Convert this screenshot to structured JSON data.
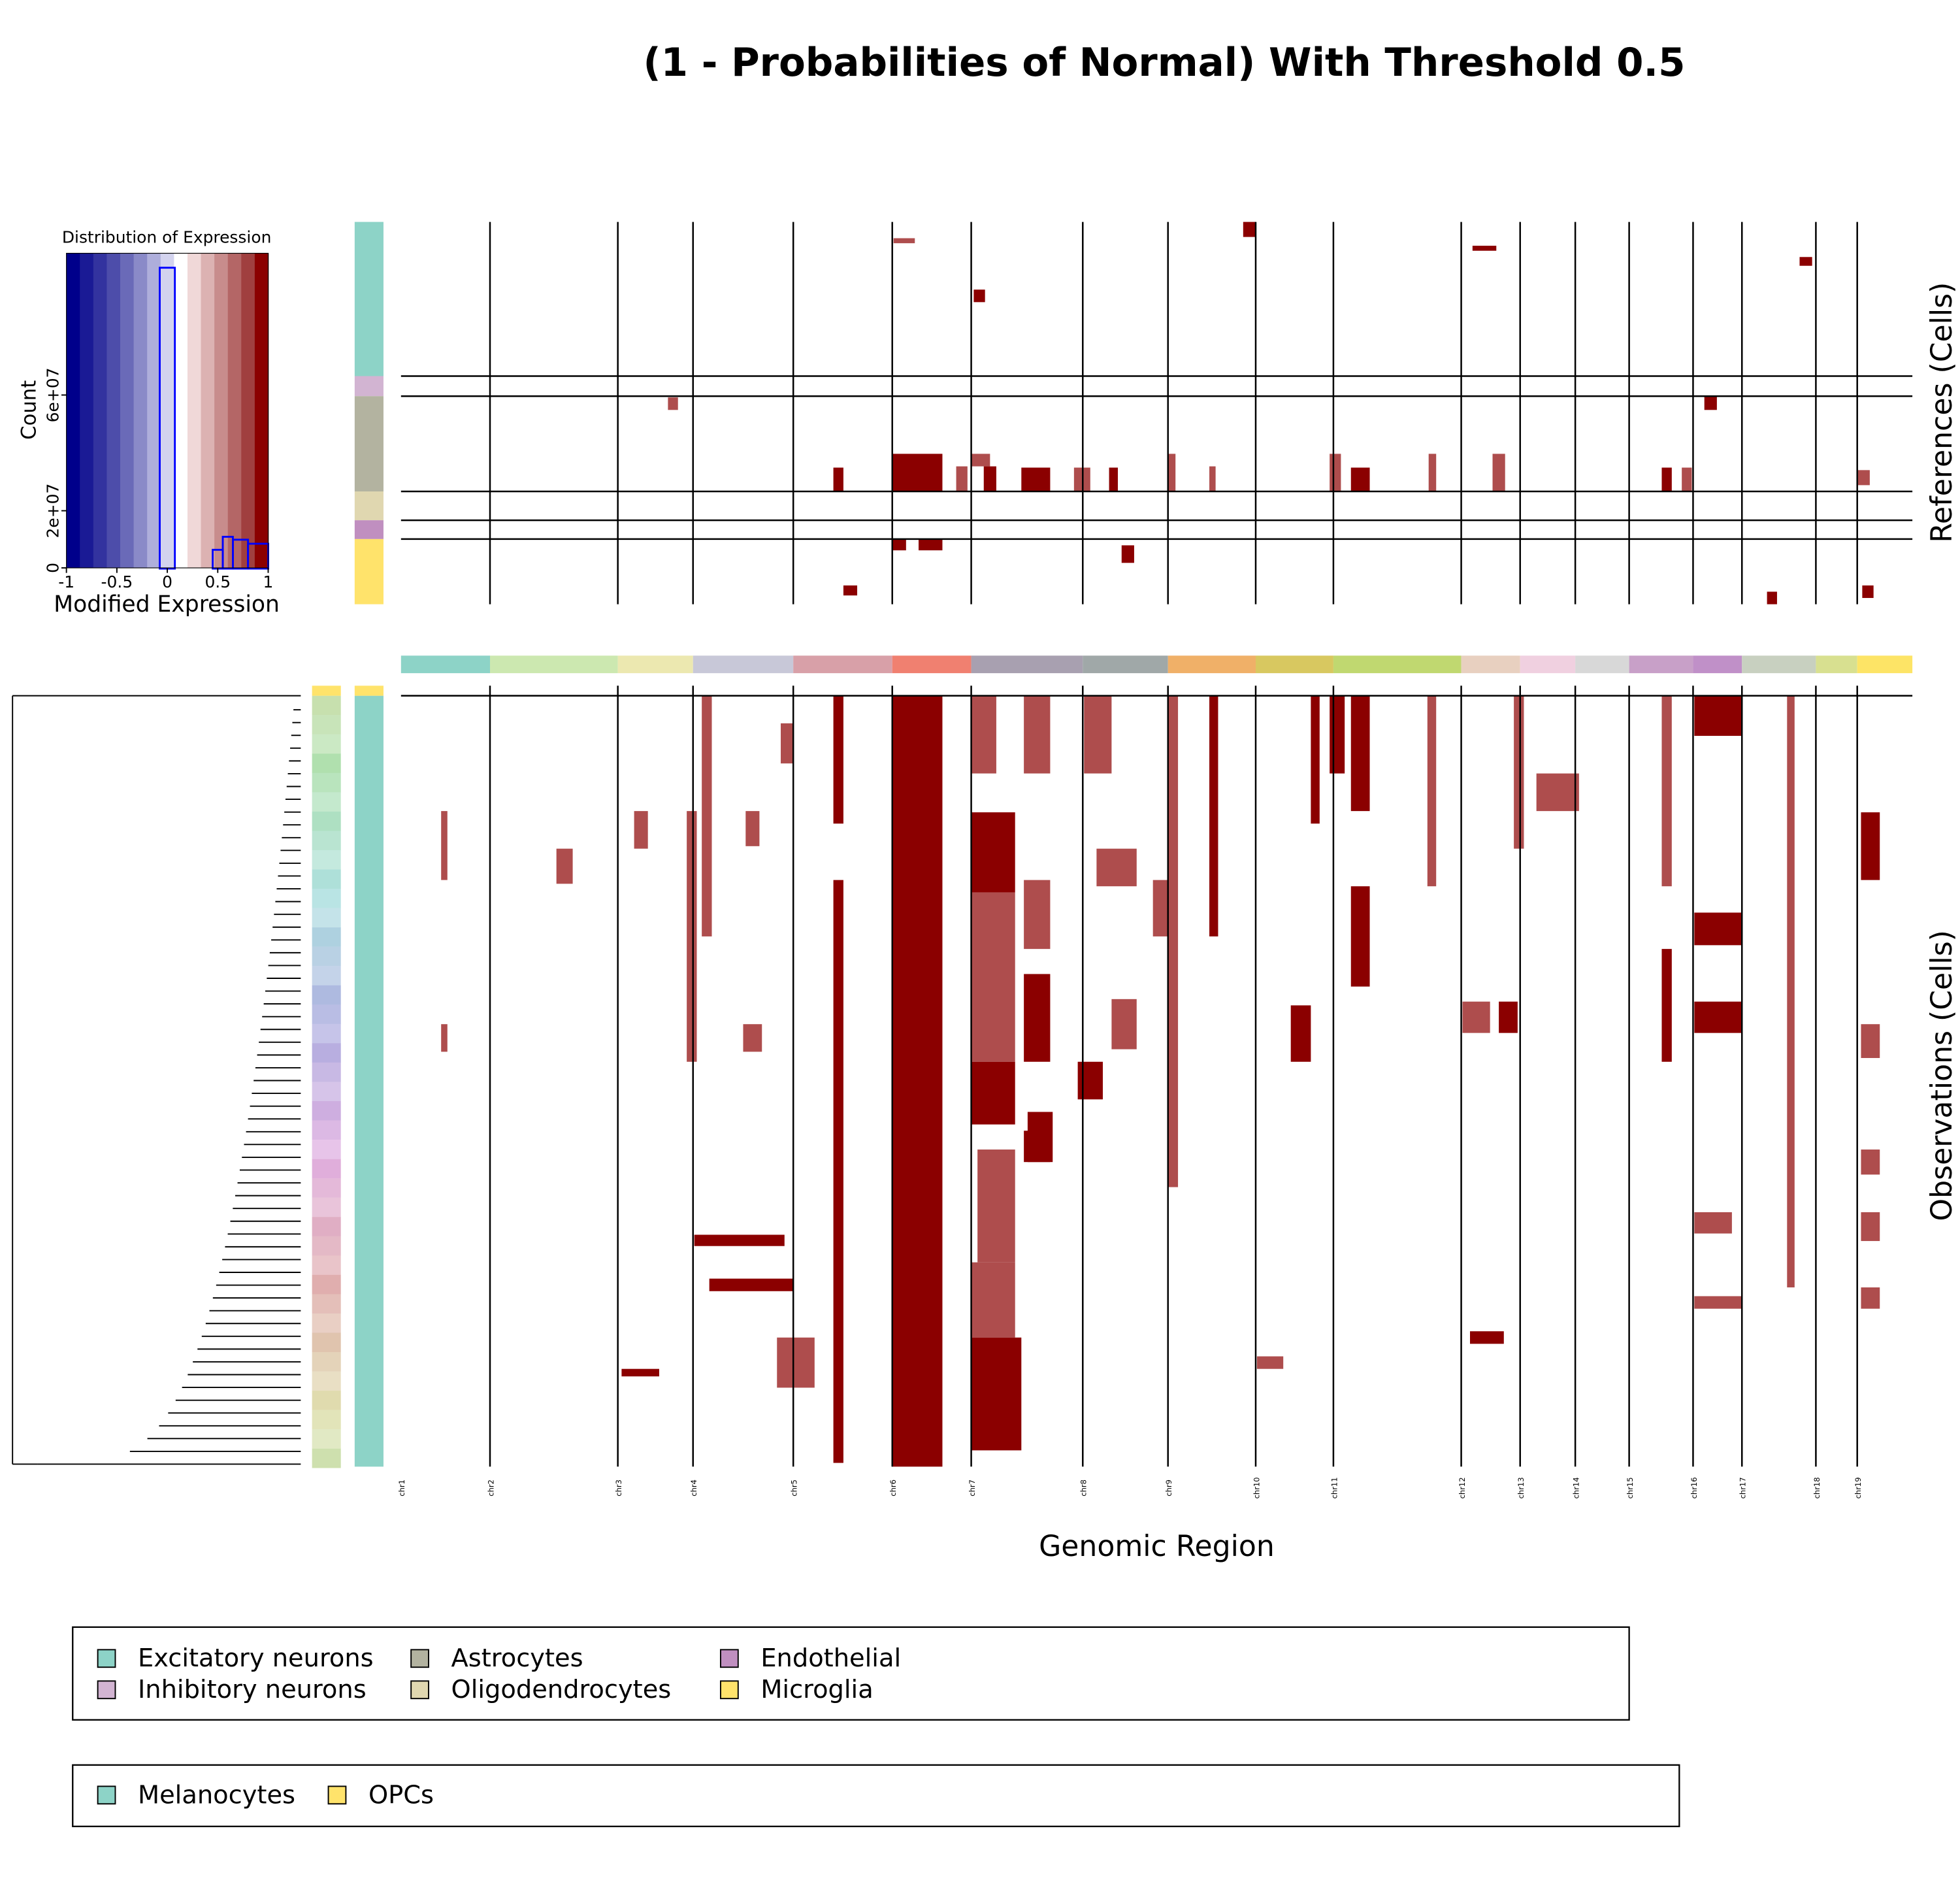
{
  "chart_data": {
    "type": "heatmap",
    "title": "(1 - Probabilities of Normal) With Threshold 0.5",
    "xlabel": "Genomic Region",
    "xlim": [
      0,
      1206
    ],
    "color": "#8b0000",
    "chromosomes": [
      {
        "name": "chr1",
        "start": 0,
        "color": "#8dd3c7"
      },
      {
        "name": "chr2",
        "start": 71,
        "color": "#cce8b0"
      },
      {
        "name": "chr3",
        "start": 173,
        "color": "#ece8b0"
      },
      {
        "name": "chr4",
        "start": 233,
        "color": "#c8c8d8"
      },
      {
        "name": "chr5",
        "start": 313,
        "color": "#d8a0a8"
      },
      {
        "name": "chr6",
        "start": 392,
        "color": "#f08070"
      },
      {
        "name": "chr7",
        "start": 455,
        "color": "#a8a0b0"
      },
      {
        "name": "chr8",
        "start": 544,
        "color": "#a0a8a8"
      },
      {
        "name": "chr9",
        "start": 612,
        "color": "#f0b068"
      },
      {
        "name": "chr10",
        "start": 682,
        "color": "#d8c860"
      },
      {
        "name": "chr11",
        "start": 744,
        "color": "#c0d870"
      },
      {
        "name": "chr12",
        "start": 846,
        "color": "#e8d0c0"
      },
      {
        "name": "chr13",
        "start": 893,
        "color": "#f0d0e0"
      },
      {
        "name": "chr14",
        "start": 937,
        "color": "#d8d8d8"
      },
      {
        "name": "chr15",
        "start": 980,
        "color": "#c8a0c8"
      },
      {
        "name": "chr16",
        "start": 1031,
        "color": "#c090c8"
      },
      {
        "name": "chr17",
        "start": 1070,
        "color": "#c8d0c0"
      },
      {
        "name": "chr18",
        "start": 1129,
        "color": "#d8e090"
      },
      {
        "name": "chr19",
        "start": 1162,
        "color": "#fde466"
      }
    ],
    "references": {
      "label": "References (Cells)",
      "ylim": [
        0,
        305
      ],
      "groups": [
        {
          "name": "Excitatory neurons",
          "color": "#8dd3c7",
          "rows": [
            0,
            123
          ]
        },
        {
          "name": "Inhibitory neurons",
          "color": "#d2b4d2",
          "rows": [
            123,
            139
          ]
        },
        {
          "name": "Astrocytes",
          "color": "#b3b3a0",
          "rows": [
            139,
            215
          ]
        },
        {
          "name": "Oligodendrocytes",
          "color": "#e0d7b0",
          "rows": [
            215,
            238
          ]
        },
        {
          "name": "Endothelial",
          "color": "#c08fc0",
          "rows": [
            238,
            253
          ]
        },
        {
          "name": "Microglia",
          "color": "#ffe36b",
          "rows": [
            253,
            305
          ]
        }
      ],
      "blocks": [
        [
          392,
          432,
          185,
          215,
          1
        ],
        [
          392,
          403,
          253,
          262,
          1
        ],
        [
          413,
          432,
          253,
          262,
          1
        ],
        [
          345,
          353,
          196,
          215,
          1
        ],
        [
          443,
          452,
          195,
          215,
          0.7
        ],
        [
          455,
          470,
          185,
          195,
          0.7
        ],
        [
          465,
          475,
          195,
          215,
          1
        ],
        [
          495,
          518,
          196,
          215,
          1
        ],
        [
          537,
          550,
          196,
          215,
          0.7
        ],
        [
          565,
          572,
          196,
          215,
          1
        ],
        [
          741,
          750,
          185,
          215,
          0.7
        ],
        [
          758,
          773,
          196,
          215,
          1
        ],
        [
          1006,
          1014,
          196,
          215,
          1
        ],
        [
          1022,
          1030,
          196,
          215,
          0.7
        ],
        [
          871,
          881,
          185,
          215,
          0.7
        ],
        [
          672,
          682,
          0,
          12,
          1
        ],
        [
          855,
          874,
          19,
          23,
          1
        ],
        [
          1116,
          1126,
          28,
          35,
          1
        ],
        [
          575,
          585,
          258,
          272,
          1
        ],
        [
          457,
          466,
          54,
          64,
          1
        ],
        [
          393,
          410,
          13,
          17,
          0.7
        ],
        [
          213,
          221,
          140,
          150,
          0.7
        ],
        [
          1040,
          1050,
          139,
          150,
          1
        ],
        [
          612,
          618,
          185,
          215,
          0.7
        ],
        [
          645,
          650,
          195,
          215,
          0.7
        ],
        [
          820,
          826,
          185,
          215,
          0.7
        ],
        [
          1162,
          1172,
          198,
          210,
          0.7
        ],
        [
          1166,
          1175,
          290,
          300,
          1
        ],
        [
          353,
          364,
          290,
          298,
          1
        ],
        [
          1090,
          1098,
          295,
          305,
          1
        ]
      ]
    },
    "observations": {
      "label": "Observations (Cells)",
      "ylim": [
        0,
        623
      ],
      "groups": [
        {
          "name": "Melanocytes",
          "color": "#8dd3c7",
          "rows": [
            8,
            623
          ]
        },
        {
          "name": "OPCs",
          "color": "#ffe36b",
          "rows": [
            0,
            8
          ]
        }
      ],
      "blocks": [
        [
          392,
          432,
          8,
          623,
          1
        ],
        [
          455,
          475,
          8,
          70,
          0.7
        ],
        [
          455,
          490,
          101,
          165,
          1
        ],
        [
          455,
          490,
          165,
          300,
          0.7
        ],
        [
          455,
          490,
          300,
          350,
          1
        ],
        [
          460,
          490,
          370,
          460,
          0.7
        ],
        [
          455,
          490,
          460,
          520,
          0.7
        ],
        [
          455,
          495,
          520,
          610,
          1
        ],
        [
          497,
          518,
          8,
          70,
          0.7
        ],
        [
          497,
          518,
          155,
          210,
          0.7
        ],
        [
          497,
          518,
          230,
          300,
          1
        ],
        [
          497,
          518,
          355,
          380,
          1
        ],
        [
          345,
          353,
          8,
          110,
          1
        ],
        [
          345,
          353,
          155,
          620,
          1
        ],
        [
          545,
          567,
          8,
          70,
          0.7
        ],
        [
          555,
          587,
          130,
          160,
          0.7
        ],
        [
          567,
          587,
          250,
          290,
          0.7
        ],
        [
          726,
          733,
          8,
          110,
          1
        ],
        [
          741,
          753,
          8,
          70,
          1
        ],
        [
          758,
          773,
          8,
          100,
          1
        ],
        [
          758,
          773,
          160,
          240,
          1
        ],
        [
          710,
          726,
          255,
          300,
          1
        ],
        [
          1032,
          1070,
          8,
          40,
          1
        ],
        [
          1032,
          1070,
          181,
          207,
          1
        ],
        [
          1032,
          1070,
          252,
          277,
          1
        ],
        [
          1032,
          1062,
          420,
          437,
          0.7
        ],
        [
          1032,
          1070,
          487,
          497,
          0.7
        ],
        [
          906,
          940,
          70,
          100,
          0.7
        ],
        [
          847,
          869,
          252,
          277,
          0.7
        ],
        [
          876,
          891,
          252,
          277,
          1
        ],
        [
          1006,
          1014,
          8,
          160,
          0.7
        ],
        [
          1006,
          1014,
          210,
          300,
          1
        ],
        [
          1165,
          1180,
          101,
          155,
          1
        ],
        [
          1165,
          1180,
          270,
          297,
          0.7
        ],
        [
          1165,
          1180,
          370,
          390,
          0.7
        ],
        [
          1165,
          1180,
          420,
          443,
          0.7
        ],
        [
          1165,
          1180,
          480,
          497,
          0.7
        ],
        [
          246,
          313,
          473,
          483,
          1
        ],
        [
          234,
          306,
          438,
          447,
          1
        ],
        [
          176,
          206,
          545,
          551,
          1
        ],
        [
          186,
          197,
          100,
          130,
          0.7
        ],
        [
          124,
          137,
          130,
          158,
          0.7
        ],
        [
          275,
          286,
          100,
          128,
          0.7
        ],
        [
          273,
          288,
          270,
          292,
          0.7
        ],
        [
          32,
          37,
          100,
          155,
          0.7
        ],
        [
          32,
          37,
          270,
          292,
          0.7
        ],
        [
          683,
          704,
          535,
          545,
          0.7
        ],
        [
          612,
          620,
          8,
          400,
          0.7
        ],
        [
          645,
          652,
          8,
          200,
          1
        ],
        [
          819,
          826,
          8,
          160,
          0.7
        ],
        [
          888,
          896,
          8,
          130,
          0.7
        ],
        [
          853,
          880,
          515,
          525,
          1
        ],
        [
          1106,
          1112,
          8,
          480,
          0.7
        ],
        [
          600,
          612,
          155,
          200,
          0.7
        ],
        [
          228,
          236,
          100,
          300,
          0.7
        ],
        [
          240,
          248,
          8,
          200,
          0.7
        ],
        [
          303,
          313,
          30,
          62,
          0.7
        ],
        [
          300,
          330,
          520,
          560,
          0.7
        ],
        [
          500,
          520,
          340,
          380,
          1
        ],
        [
          540,
          560,
          300,
          330,
          1
        ]
      ]
    },
    "histogram": {
      "type": "histogram",
      "title": "Distribution of Expression",
      "xlabel": "Modified Expression",
      "ylabel": "Count",
      "color": "#0000ff",
      "bins": [
        -1,
        -0.075,
        0.075,
        0.45,
        0.55,
        0.65,
        0.8,
        1
      ],
      "counts": [
        0,
        104000000,
        0,
        6500000,
        11000000,
        10000000,
        8600000
      ],
      "xlim": [
        -1,
        1
      ],
      "ylim": [
        -3000000,
        109000000
      ],
      "xticks": [
        -1,
        -0.5,
        0,
        0.5,
        1
      ],
      "yticks": [
        0,
        {
          "value": 20000000,
          "label": "2e+07"
        },
        {
          "value": 60000000,
          "label": "6e+07"
        }
      ]
    }
  }
}
